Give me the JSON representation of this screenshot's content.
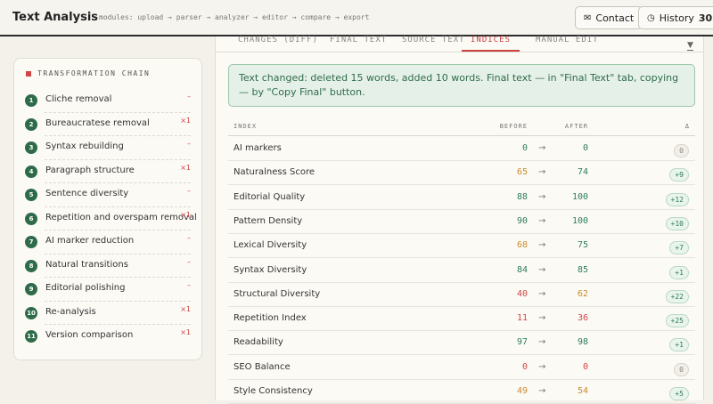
{
  "header": {
    "title": "Text Analysis",
    "modules": "modules: upload → parser → analyzer → editor → compare → export",
    "contact": "Contact",
    "history": "History",
    "history_count": 30
  },
  "tabs": {
    "items": [
      "CHANGES (DIFF)",
      "FINAL TEXT",
      "SOURCE TEXT",
      "INDICES",
      "MANUAL EDIT"
    ],
    "active": 3
  },
  "sidebar": {
    "title": "TRANSFORMATION CHAIN",
    "steps": [
      {
        "number": 1,
        "label": "Cliche removal",
        "mark": "–"
      },
      {
        "number": 2,
        "label": "Bureaucratese removal",
        "mark": "×1"
      },
      {
        "number": 3,
        "label": "Syntax rebuilding",
        "mark": "–"
      },
      {
        "number": 4,
        "label": "Paragraph structure",
        "mark": "×1"
      },
      {
        "number": 5,
        "label": "Sentence diversity",
        "mark": "–"
      },
      {
        "number": 6,
        "label": "Repetition and overspam removal",
        "mark": "×1"
      },
      {
        "number": 7,
        "label": "AI marker reduction",
        "mark": "–"
      },
      {
        "number": 8,
        "label": "Natural transitions",
        "mark": "–"
      },
      {
        "number": 9,
        "label": "Editorial polishing",
        "mark": "–"
      },
      {
        "number": 10,
        "label": "Re-analysis",
        "mark": "×1"
      },
      {
        "number": 11,
        "label": "Version comparison",
        "mark": "×1"
      }
    ]
  },
  "notice": "Text changed: deleted 15 words, added 10 words. Final text — in \"Final Text\" tab, copying — by \"Copy Final\" button.",
  "table": {
    "columns": [
      "INDEX",
      "BEFORE",
      "AFTER",
      "Δ"
    ],
    "arrow": "→",
    "rows": [
      {
        "name": "AI markers",
        "before": 0,
        "before_color": "#2e7d5b",
        "after": 0,
        "after_color": "#2e7d5b",
        "delta": "0"
      },
      {
        "name": "Naturalness Score",
        "before": 65,
        "before_color": "#c98a2e",
        "after": 74,
        "after_color": "#2e7d5b",
        "delta": "+9"
      },
      {
        "name": "Editorial Quality",
        "before": 88,
        "before_color": "#2e7d5b",
        "after": 100,
        "after_color": "#2e7d5b",
        "delta": "+12"
      },
      {
        "name": "Pattern Density",
        "before": 90,
        "before_color": "#2e7d5b",
        "after": 100,
        "after_color": "#2e7d5b",
        "delta": "+10"
      },
      {
        "name": "Lexical Diversity",
        "before": 68,
        "before_color": "#c98a2e",
        "after": 75,
        "after_color": "#2e7d5b",
        "delta": "+7"
      },
      {
        "name": "Syntax Diversity",
        "before": 84,
        "before_color": "#2e7d5b",
        "after": 85,
        "after_color": "#2e7d5b",
        "delta": "+1"
      },
      {
        "name": "Structural Diversity",
        "before": 40,
        "before_color": "#d04545",
        "after": 62,
        "after_color": "#c98a2e",
        "delta": "+22"
      },
      {
        "name": "Repetition Index",
        "before": 11,
        "before_color": "#d04545",
        "after": 36,
        "after_color": "#d04545",
        "delta": "+25"
      },
      {
        "name": "Readability",
        "before": 97,
        "before_color": "#2e7d5b",
        "after": 98,
        "after_color": "#2e7d5b",
        "delta": "+1"
      },
      {
        "name": "SEO Balance",
        "before": 0,
        "before_color": "#d04545",
        "after": 0,
        "after_color": "#d04545",
        "delta": "0"
      },
      {
        "name": "Style Consistency",
        "before": 49,
        "before_color": "#c98a2e",
        "after": 54,
        "after_color": "#c98a2e",
        "delta": "+5"
      }
    ]
  }
}
